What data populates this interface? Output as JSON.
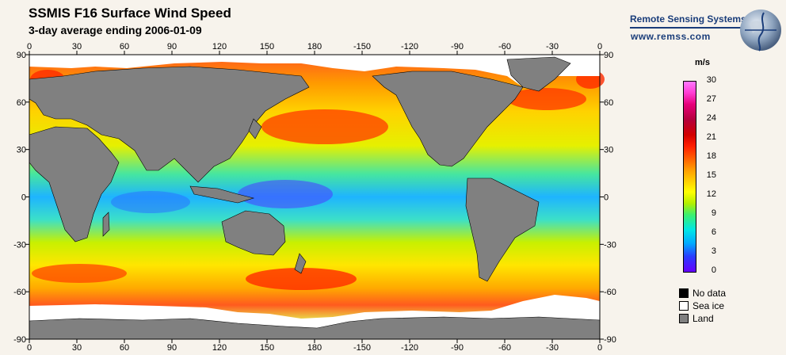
{
  "header": {
    "title": "SSMIS F16 Surface Wind Speed",
    "subtitle": "3-day average ending 2006-01-09"
  },
  "brand": {
    "name": "Remote Sensing Systems",
    "url": "www.remss.com"
  },
  "map": {
    "lon_ticks": [
      "0",
      "30",
      "60",
      "90",
      "120",
      "150",
      "180",
      "-150",
      "-120",
      "-90",
      "-60",
      "-30",
      "0"
    ],
    "lat_ticks": [
      "90",
      "60",
      "30",
      "0",
      "-30",
      "-60",
      "-90"
    ],
    "land_color": "#808080",
    "ocean_color": "#e8e000"
  },
  "colorbar": {
    "unit": "m/s",
    "ticks": [
      "30",
      "27",
      "24",
      "21",
      "18",
      "15",
      "12",
      "9",
      "6",
      "3",
      "0"
    ]
  },
  "legend": {
    "items": [
      {
        "label": "No data",
        "color": "#000000"
      },
      {
        "label": "Sea ice",
        "color": "#ffffff"
      },
      {
        "label": "Land",
        "color": "#808080"
      }
    ]
  }
}
